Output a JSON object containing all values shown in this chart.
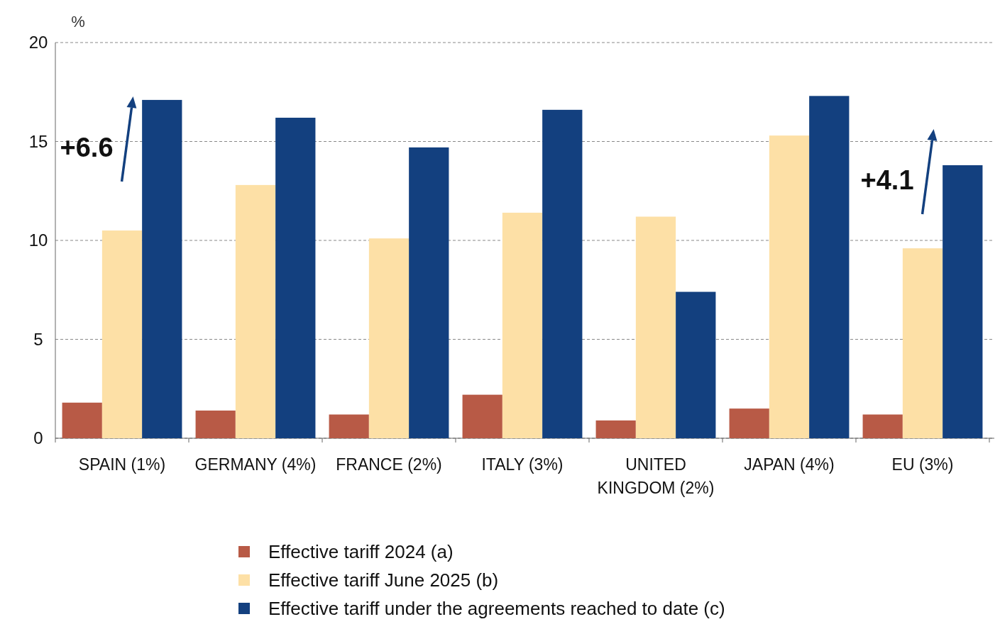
{
  "chart_data": {
    "type": "bar",
    "ylabel": "%",
    "categories": [
      "SPAIN (1%)",
      "GERMANY (4%)",
      "FRANCE (2%)",
      "ITALY (3%)",
      "UNITED KINGDOM (2%)",
      "JAPAN (4%)",
      "EU (3%)"
    ],
    "series": [
      {
        "name": "Effective tariff 2024 (a)",
        "color": "#b85a46",
        "values": [
          1.8,
          1.4,
          1.2,
          2.2,
          0.9,
          1.5,
          1.2
        ]
      },
      {
        "name": "Effective tariff June 2025 (b)",
        "color": "#fde0a6",
        "values": [
          10.5,
          12.8,
          10.1,
          11.4,
          11.2,
          15.3,
          9.6
        ]
      },
      {
        "name": "Effective tariff under the agreements reached to date (c)",
        "color": "#13407f",
        "values": [
          17.1,
          16.2,
          14.7,
          16.6,
          7.4,
          17.3,
          13.8
        ]
      }
    ],
    "annotations": [
      "+6.6",
      "+4.1"
    ],
    "ylim": [
      0,
      20
    ],
    "yticks": [
      0,
      5,
      10,
      15,
      20
    ],
    "grid": "y",
    "legend": "bottom"
  }
}
